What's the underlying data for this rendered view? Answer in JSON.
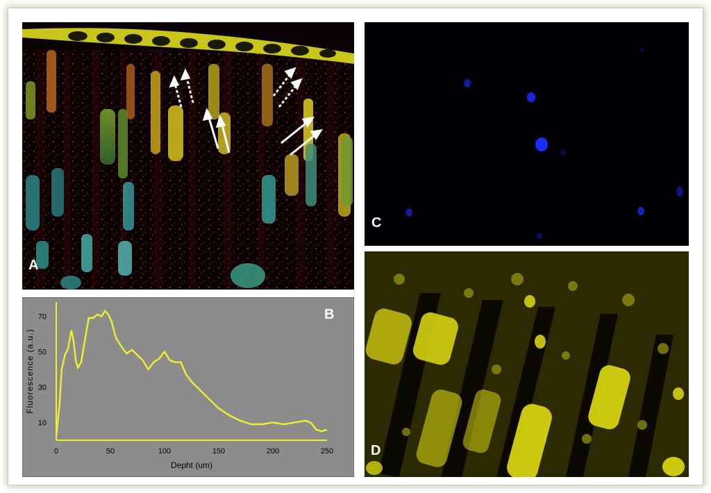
{
  "panels": {
    "a": {
      "letter": "A"
    },
    "b": {
      "letter": "B"
    },
    "c": {
      "letter": "C"
    },
    "d": {
      "letter": "D"
    }
  },
  "chart_data": {
    "type": "line",
    "title": "",
    "xlabel": "Depht (um)",
    "ylabel": "Fluorescence (a.u.)",
    "xlim": [
      0,
      250
    ],
    "ylim": [
      0,
      78
    ],
    "xticks": [
      0,
      50,
      100,
      150,
      200,
      250
    ],
    "yticks": [
      10,
      30,
      50,
      70
    ],
    "grid": false,
    "line_color": "#f2ef2b",
    "background": "#8c8c8c",
    "series": [
      {
        "x": [
          0,
          3,
          5,
          8,
          11,
          14,
          16,
          18,
          20,
          23,
          26,
          30,
          34,
          38,
          42,
          45,
          48,
          51,
          55,
          58,
          61,
          65,
          70,
          75,
          80,
          85,
          90,
          95,
          100,
          105,
          110,
          115,
          120,
          125,
          130,
          140,
          150,
          160,
          170,
          180,
          190,
          200,
          210,
          220,
          230,
          235,
          240,
          245,
          250
        ],
        "y": [
          2,
          20,
          40,
          48,
          52,
          62,
          56,
          45,
          41,
          44,
          55,
          69,
          69,
          71,
          70,
          73,
          71,
          67,
          58,
          55,
          52,
          49,
          51,
          48,
          45,
          40,
          44,
          46,
          50,
          45,
          44,
          44,
          37,
          33,
          30,
          24,
          18,
          14,
          11,
          9,
          9,
          10,
          9,
          10,
          11,
          10,
          6,
          5,
          6
        ]
      }
    ]
  }
}
